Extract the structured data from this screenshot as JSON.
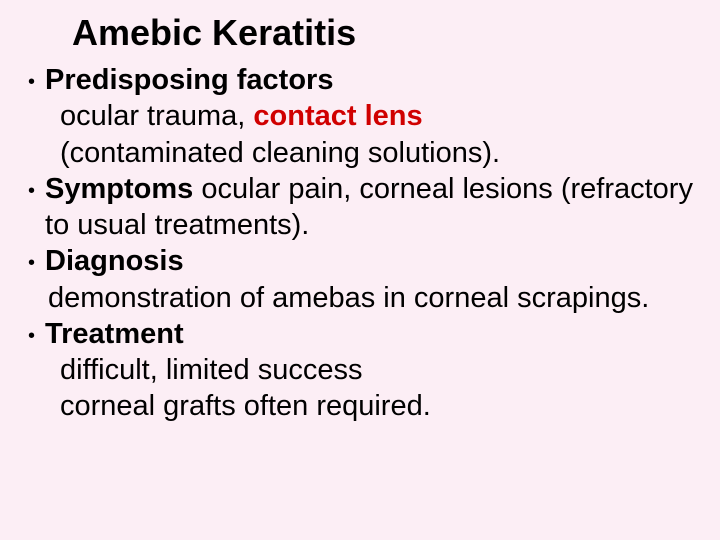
{
  "slide": {
    "title": "Amebic Keratitis",
    "background_color": "#fceef5",
    "title_color": "#000000",
    "title_fontsize": 36,
    "body_fontsize": 29,
    "font_family": "Comic Sans MS",
    "text_color": "#000000",
    "highlight_color": "#d00000",
    "bullets": [
      {
        "heading": "Predisposing factors",
        "lines": [
          {
            "prefix": "ocular trauma, ",
            "highlight": "contact lens"
          },
          {
            "text": "(contaminated cleaning solutions)."
          }
        ]
      },
      {
        "heading": "Symptoms",
        "inline_after_heading": "  ocular pain, corneal lesions (refractory to usual treatments).",
        "lines": []
      },
      {
        "heading": "Diagnosis",
        "lines": [
          {
            "text": "demonstration of amebas in corneal scrapings.",
            "tight": true
          }
        ]
      },
      {
        "heading": "Treatment",
        "lines": [
          {
            "text": "difficult, limited success"
          },
          {
            "text": "corneal grafts often required."
          }
        ]
      }
    ]
  }
}
